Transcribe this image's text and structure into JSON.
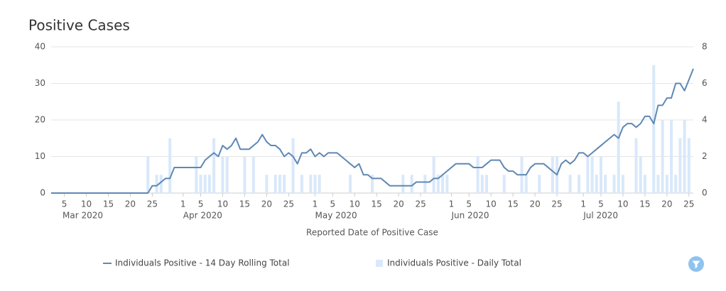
{
  "chart_data": {
    "type": "line-bar",
    "title": "Positive Cases",
    "xlabel": "Reported Date of Positive Case",
    "x": [
      "2020-03-02",
      "2020-03-03",
      "2020-03-04",
      "2020-03-05",
      "2020-03-06",
      "2020-03-07",
      "2020-03-08",
      "2020-03-09",
      "2020-03-10",
      "2020-03-11",
      "2020-03-12",
      "2020-03-13",
      "2020-03-14",
      "2020-03-15",
      "2020-03-16",
      "2020-03-17",
      "2020-03-18",
      "2020-03-19",
      "2020-03-20",
      "2020-03-21",
      "2020-03-22",
      "2020-03-23",
      "2020-03-24",
      "2020-03-25",
      "2020-03-26",
      "2020-03-27",
      "2020-03-28",
      "2020-03-29",
      "2020-03-30",
      "2020-03-31",
      "2020-04-01",
      "2020-04-02",
      "2020-04-03",
      "2020-04-04",
      "2020-04-05",
      "2020-04-06",
      "2020-04-07",
      "2020-04-08",
      "2020-04-09",
      "2020-04-10",
      "2020-04-11",
      "2020-04-12",
      "2020-04-13",
      "2020-04-14",
      "2020-04-15",
      "2020-04-16",
      "2020-04-17",
      "2020-04-18",
      "2020-04-19",
      "2020-04-20",
      "2020-04-21",
      "2020-04-22",
      "2020-04-23",
      "2020-04-24",
      "2020-04-25",
      "2020-04-26",
      "2020-04-27",
      "2020-04-28",
      "2020-04-29",
      "2020-04-30",
      "2020-05-01",
      "2020-05-02",
      "2020-05-03",
      "2020-05-04",
      "2020-05-05",
      "2020-05-06",
      "2020-05-07",
      "2020-05-08",
      "2020-05-09",
      "2020-05-10",
      "2020-05-11",
      "2020-05-12",
      "2020-05-13",
      "2020-05-14",
      "2020-05-15",
      "2020-05-16",
      "2020-05-17",
      "2020-05-18",
      "2020-05-19",
      "2020-05-20",
      "2020-05-21",
      "2020-05-22",
      "2020-05-23",
      "2020-05-24",
      "2020-05-25",
      "2020-05-26",
      "2020-05-27",
      "2020-05-28",
      "2020-05-29",
      "2020-05-30",
      "2020-05-31",
      "2020-06-01",
      "2020-06-02",
      "2020-06-03",
      "2020-06-04",
      "2020-06-05",
      "2020-06-06",
      "2020-06-07",
      "2020-06-08",
      "2020-06-09",
      "2020-06-10",
      "2020-06-11",
      "2020-06-12",
      "2020-06-13",
      "2020-06-14",
      "2020-06-15",
      "2020-06-16",
      "2020-06-17",
      "2020-06-18",
      "2020-06-19",
      "2020-06-20",
      "2020-06-21",
      "2020-06-22",
      "2020-06-23",
      "2020-06-24",
      "2020-06-25",
      "2020-06-26",
      "2020-06-27",
      "2020-06-28",
      "2020-06-29",
      "2020-06-30",
      "2020-07-01",
      "2020-07-02",
      "2020-07-03",
      "2020-07-04",
      "2020-07-05",
      "2020-07-06",
      "2020-07-07",
      "2020-07-08",
      "2020-07-09",
      "2020-07-10",
      "2020-07-11",
      "2020-07-12",
      "2020-07-13",
      "2020-07-14",
      "2020-07-15",
      "2020-07-16",
      "2020-07-17",
      "2020-07-18",
      "2020-07-19",
      "2020-07-20",
      "2020-07-21",
      "2020-07-22",
      "2020-07-23",
      "2020-07-24",
      "2020-07-25",
      "2020-07-26"
    ],
    "series": [
      {
        "name": "Individuals Positive - 14 Day Rolling Total",
        "type": "line",
        "axis": "y",
        "color": "#5f88b4",
        "values": [
          0,
          0,
          0,
          0,
          0,
          0,
          0,
          0,
          0,
          0,
          0,
          0,
          0,
          0,
          0,
          0,
          0,
          0,
          0,
          0,
          0,
          0,
          0,
          2,
          2,
          3,
          4,
          4,
          7,
          7,
          7,
          7,
          7,
          7,
          7,
          9,
          10,
          11,
          10,
          13,
          12,
          13,
          15,
          12,
          12,
          12,
          13,
          14,
          16,
          14,
          13,
          13,
          12,
          10,
          11,
          10,
          8,
          11,
          11,
          12,
          10,
          11,
          10,
          11,
          11,
          11,
          10,
          9,
          8,
          7,
          8,
          5,
          5,
          4,
          4,
          4,
          3,
          2,
          2,
          2,
          2,
          2,
          2,
          3,
          3,
          3,
          3,
          4,
          4,
          5,
          6,
          7,
          8,
          8,
          8,
          8,
          7,
          7,
          7,
          8,
          9,
          9,
          9,
          7,
          6,
          6,
          5,
          5,
          5,
          7,
          8,
          8,
          8,
          7,
          6,
          5,
          8,
          9,
          8,
          9,
          11,
          11,
          10,
          11,
          12,
          13,
          14,
          15,
          16,
          15,
          18,
          19,
          19,
          18,
          19,
          21,
          21,
          19,
          24,
          24,
          26,
          26,
          30,
          30,
          28,
          31,
          34
        ]
      },
      {
        "name": "Individuals Positive - Daily Total",
        "type": "bar",
        "axis": "y2",
        "color": "#d9e8fa",
        "values": [
          0,
          0,
          0,
          0,
          0,
          0,
          0,
          0,
          0,
          0,
          0,
          0,
          0,
          0,
          0,
          0,
          0,
          0,
          0,
          0,
          0,
          0,
          2,
          0,
          1,
          1,
          0,
          3,
          0,
          0,
          0,
          0,
          0,
          2,
          1,
          1,
          1,
          3,
          0,
          2,
          2,
          0,
          0,
          0,
          2,
          0,
          2,
          0,
          0,
          1,
          0,
          1,
          1,
          1,
          0,
          3,
          0,
          1,
          0,
          1,
          1,
          1,
          0,
          0,
          0,
          0,
          0,
          0,
          1,
          0,
          0,
          0,
          0,
          1,
          0,
          0,
          0,
          0,
          0,
          0,
          1,
          0,
          1,
          0,
          0,
          1,
          0,
          2,
          1,
          1,
          1,
          0,
          0,
          0,
          0,
          0,
          0,
          2,
          1,
          1,
          0,
          0,
          0,
          1,
          0,
          0,
          0,
          2,
          1,
          0,
          0,
          1,
          0,
          0,
          2,
          2,
          0,
          0,
          1,
          0,
          1,
          0,
          2,
          2,
          1,
          2,
          1,
          0,
          1,
          5,
          1,
          0,
          0,
          3,
          2,
          1,
          0,
          7,
          1,
          4,
          1,
          4,
          1,
          3,
          4,
          3,
          0
        ]
      }
    ],
    "xlim": [
      "2020-03-02",
      "2020-07-26"
    ],
    "ylim": [
      0,
      40
    ],
    "yticks": [
      0,
      10,
      20,
      30,
      40
    ],
    "y2lim": [
      0,
      8
    ],
    "y2ticks": [
      0,
      2,
      4,
      6,
      8
    ],
    "grid": true,
    "xticks": [
      {
        "value": "2020-03-05",
        "label": "5"
      },
      {
        "value": "2020-03-10",
        "label": "10"
      },
      {
        "value": "2020-03-15",
        "label": "15"
      },
      {
        "value": "2020-03-20",
        "label": "20"
      },
      {
        "value": "2020-03-25",
        "label": "25"
      },
      {
        "value": "2020-04-01",
        "label": "1"
      },
      {
        "value": "2020-04-05",
        "label": "5"
      },
      {
        "value": "2020-04-10",
        "label": "10"
      },
      {
        "value": "2020-04-15",
        "label": "15"
      },
      {
        "value": "2020-04-20",
        "label": "20"
      },
      {
        "value": "2020-04-25",
        "label": "25"
      },
      {
        "value": "2020-05-01",
        "label": "1"
      },
      {
        "value": "2020-05-05",
        "label": "5"
      },
      {
        "value": "2020-05-10",
        "label": "10"
      },
      {
        "value": "2020-05-15",
        "label": "15"
      },
      {
        "value": "2020-05-20",
        "label": "20"
      },
      {
        "value": "2020-05-25",
        "label": "25"
      },
      {
        "value": "2020-06-01",
        "label": "1"
      },
      {
        "value": "2020-06-05",
        "label": "5"
      },
      {
        "value": "2020-06-10",
        "label": "10"
      },
      {
        "value": "2020-06-15",
        "label": "15"
      },
      {
        "value": "2020-06-20",
        "label": "20"
      },
      {
        "value": "2020-06-25",
        "label": "25"
      },
      {
        "value": "2020-07-01",
        "label": "1"
      },
      {
        "value": "2020-07-05",
        "label": "5"
      },
      {
        "value": "2020-07-10",
        "label": "10"
      },
      {
        "value": "2020-07-15",
        "label": "15"
      },
      {
        "value": "2020-07-20",
        "label": "20"
      },
      {
        "value": "2020-07-25",
        "label": "25"
      }
    ],
    "month_ticks": [
      {
        "value": "2020-03-01",
        "label": "Mar 2020"
      },
      {
        "value": "2020-04-01",
        "label": "Apr 2020"
      },
      {
        "value": "2020-05-01",
        "label": "May 2020"
      },
      {
        "value": "2020-06-01",
        "label": "Jun 2020"
      },
      {
        "value": "2020-07-01",
        "label": "Jul 2020"
      }
    ]
  }
}
